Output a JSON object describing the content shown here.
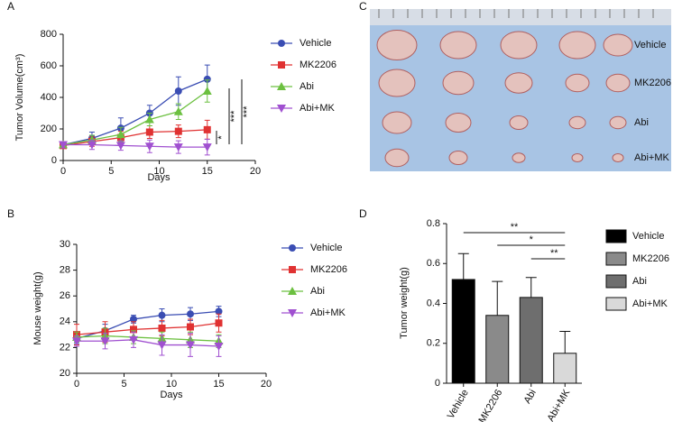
{
  "chart_data": [
    {
      "type": "line",
      "panel": "A",
      "x_label": "Days",
      "y_label": "Tumor Volume(cm³)",
      "x": [
        0,
        3,
        6,
        9,
        12,
        15
      ],
      "xlim": [
        0,
        20
      ],
      "xticks": [
        0,
        5,
        10,
        15,
        20
      ],
      "ylim": [
        0,
        800
      ],
      "yticks": [
        0,
        200,
        400,
        600,
        800
      ],
      "series": [
        {
          "name": "Vehicle",
          "color": "#3a4db3",
          "marker": "circle",
          "values": [
            100,
            140,
            205,
            300,
            440,
            515
          ],
          "errors": [
            20,
            40,
            65,
            50,
            90,
            90
          ]
        },
        {
          "name": "MK2206",
          "color": "#e03232",
          "marker": "square",
          "values": [
            95,
            120,
            145,
            180,
            185,
            195
          ],
          "errors": [
            15,
            30,
            40,
            40,
            40,
            60
          ]
        },
        {
          "name": "Abi",
          "color": "#6cc040",
          "marker": "triangle",
          "values": [
            100,
            130,
            165,
            260,
            310,
            440
          ],
          "errors": [
            15,
            30,
            45,
            40,
            50,
            70
          ]
        },
        {
          "name": "Abi+MK",
          "color": "#a050d0",
          "marker": "triangle-down",
          "values": [
            100,
            100,
            95,
            90,
            85,
            85
          ],
          "errors": [
            20,
            30,
            30,
            40,
            40,
            50
          ]
        }
      ],
      "annotations": [
        {
          "text": "*"
        },
        {
          "text": "***"
        },
        {
          "text": "***"
        }
      ]
    },
    {
      "type": "line",
      "panel": "B",
      "x_label": "Days",
      "y_label": "Mouse weight(g)",
      "x": [
        0,
        3,
        6,
        9,
        12,
        15
      ],
      "xlim": [
        0,
        20
      ],
      "xticks": [
        0,
        5,
        10,
        15,
        20
      ],
      "ylim": [
        20,
        30
      ],
      "yticks": [
        20,
        22,
        24,
        26,
        28,
        30
      ],
      "series": [
        {
          "name": "Vehicle",
          "color": "#3a4db3",
          "marker": "circle",
          "values": [
            22.7,
            23.3,
            24.2,
            24.5,
            24.6,
            24.8
          ],
          "errors": [
            0.4,
            0.5,
            0.3,
            0.5,
            0.5,
            0.4
          ]
        },
        {
          "name": "MK2206",
          "color": "#e03232",
          "marker": "square",
          "values": [
            23.0,
            23.2,
            23.4,
            23.5,
            23.6,
            23.9
          ],
          "errors": [
            0.8,
            0.8,
            0.6,
            0.6,
            0.6,
            0.7
          ]
        },
        {
          "name": "Abi",
          "color": "#6cc040",
          "marker": "triangle",
          "values": [
            22.8,
            22.9,
            22.8,
            22.7,
            22.6,
            22.5
          ],
          "errors": [
            0.4,
            0.6,
            0.5,
            0.5,
            0.6,
            0.5
          ]
        },
        {
          "name": "Abi+MK",
          "color": "#a050d0",
          "marker": "triangle-down",
          "values": [
            22.5,
            22.5,
            22.6,
            22.2,
            22.2,
            22.1
          ],
          "errors": [
            0.4,
            0.6,
            0.6,
            0.8,
            0.9,
            0.8
          ]
        }
      ]
    },
    {
      "type": "bar",
      "panel": "D",
      "y_label": "Tumor  weight(g)",
      "categories": [
        "Vehicle",
        "MK2206",
        "Abi",
        "Abi+MK"
      ],
      "values": [
        0.52,
        0.34,
        0.43,
        0.15
      ],
      "errors": [
        0.13,
        0.17,
        0.1,
        0.11
      ],
      "colors": [
        "#000000",
        "#8a8a8a",
        "#6e6e6e",
        "#d9d9d9"
      ],
      "ylim": [
        0,
        0.8
      ],
      "yticks": [
        0,
        0.2,
        0.4,
        0.6,
        0.8
      ],
      "annotations": [
        {
          "text": "**"
        },
        {
          "text": "*"
        },
        {
          "text": "**"
        }
      ]
    }
  ],
  "photo_panel": {
    "panel": "C",
    "row_labels": [
      "Vehicle",
      "MK2206",
      "Abi",
      "Abi+MK"
    ]
  }
}
